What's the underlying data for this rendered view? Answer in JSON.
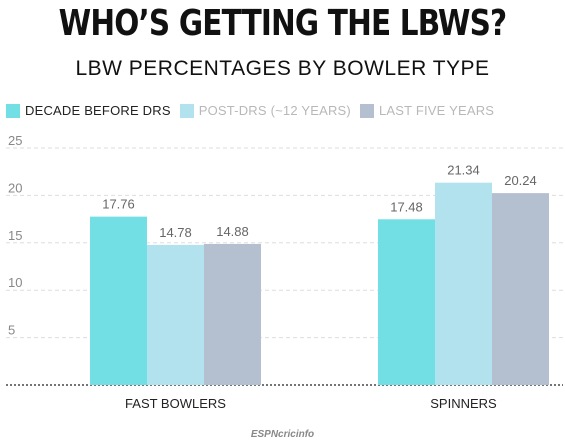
{
  "title": "WHO’S GETTING THE LBWS?",
  "subtitle": "LBW PERCENTAGES BY BOWLER TYPE",
  "footer": "ESPNcricinfo",
  "chart_data": {
    "type": "bar",
    "categories": [
      "FAST BOWLERS",
      "SPINNERS"
    ],
    "series": [
      {
        "name": "DECADE BEFORE DRS",
        "values": [
          17.76,
          17.48
        ],
        "color": "#72dfe5",
        "legend_text_color": "#222222"
      },
      {
        "name": "POST-DRS (~12 YEARS)",
        "values": [
          14.78,
          21.34
        ],
        "color": "#b2e2ee",
        "legend_text_color": "#b8b8b8"
      },
      {
        "name": "LAST FIVE YEARS",
        "values": [
          14.88,
          20.24
        ],
        "color": "#b4bfcf",
        "legend_text_color": "#b8b8b8"
      }
    ],
    "ylim": [
      0,
      25
    ],
    "yticks": [
      5,
      10,
      15,
      20,
      25
    ],
    "grid": true,
    "legend_position": "top-left"
  }
}
